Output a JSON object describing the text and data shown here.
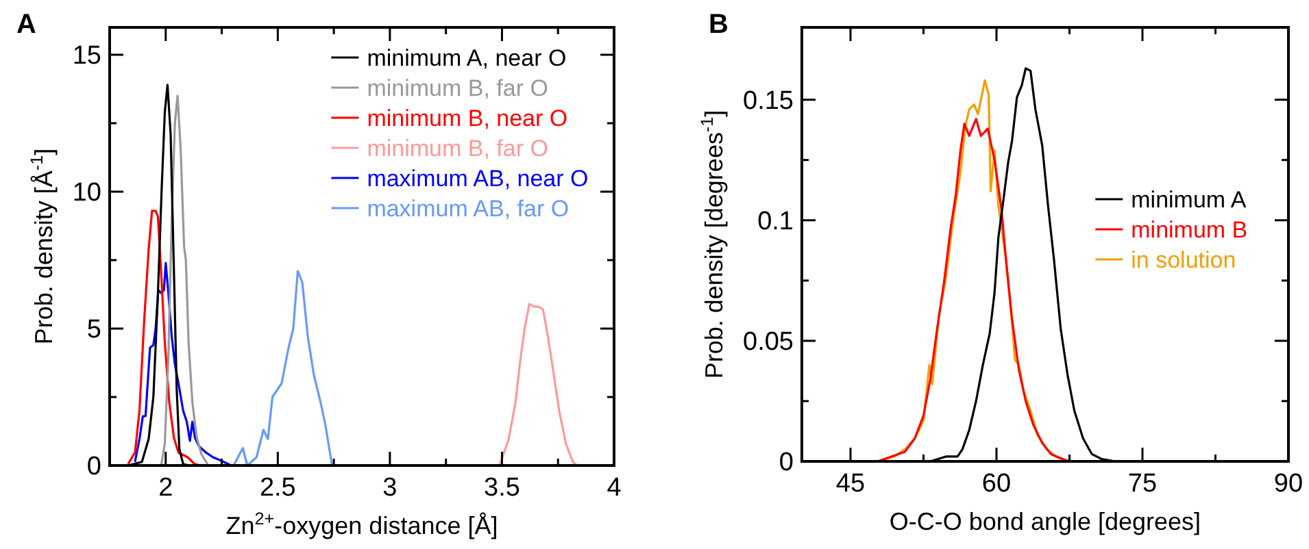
{
  "chart_data": [
    {
      "type": "line",
      "xlabel": "Zn$^{2+}$-oxygen distance [Å]",
      "ylabel": "Prob. density [Å$^{-1}$]",
      "annotations": [
        "A"
      ],
      "legend": "top right",
      "xlim": [
        1.75,
        4
      ],
      "ylim": [
        0,
        16
      ],
      "xticks": [
        {
          "value": 2,
          "label": "2"
        },
        {
          "value": 2.25,
          "label": null
        },
        {
          "value": 2.5,
          "label": "2.5"
        },
        {
          "value": 2.75,
          "label": null
        },
        {
          "value": 3,
          "label": "3"
        },
        {
          "value": 3.25,
          "label": null
        },
        {
          "value": 3.5,
          "label": "3.5"
        },
        {
          "value": 3.75,
          "label": null
        },
        {
          "value": 4,
          "label": "4"
        }
      ],
      "yticks": [
        0,
        {
          "value": 2.5,
          "label": null
        },
        5,
        {
          "value": 7.5,
          "label": null
        },
        10,
        {
          "value": 12.5,
          "label": null
        },
        15
      ],
      "series": [
        {
          "name": "minimum A, near O",
          "color": "#000000",
          "x": [
            1.832,
            1.894,
            1.924,
            1.945,
            1.965,
            1.982,
            1.996,
            2.008,
            2.022,
            2.037,
            2.049,
            2.061,
            2.078,
            2.108
          ],
          "values": [
            0,
            0.13,
            0.97,
            2.5,
            6.2,
            10.1,
            12.9,
            13.9,
            12.1,
            7.0,
            2.8,
            0.6,
            0.05,
            0
          ]
        },
        {
          "name": "minimum B, far O",
          "color": "#999999",
          "x": [
            1.98,
            1.996,
            2.012,
            2.027,
            2.041,
            2.053,
            2.067,
            2.082,
            2.09,
            2.102,
            2.119,
            2.139,
            2.16,
            2.19
          ],
          "values": [
            0,
            0.8,
            4,
            9,
            12.5,
            13.5,
            11.5,
            8,
            7.5,
            4.5,
            2.3,
            1.0,
            0.4,
            0
          ]
        },
        {
          "name": "minimum B, near O",
          "color": "#ff0000",
          "x": [
            1.832,
            1.863,
            1.883,
            1.904,
            1.924,
            1.939,
            1.955,
            1.965,
            1.98,
            1.996,
            2.016,
            2.037,
            2.057,
            2.098,
            2.129,
            2.16
          ],
          "values": [
            0.05,
            0.47,
            2.0,
            5.3,
            7.9,
            9.3,
            9.3,
            9.1,
            7.0,
            4.5,
            2.3,
            1.0,
            0.47,
            0.3,
            0.05,
            0
          ]
        },
        {
          "name": "minimum B, far O",
          "color": "#ff9999",
          "x": [
            3.489,
            3.53,
            3.56,
            3.581,
            3.601,
            3.622,
            3.642,
            3.663,
            3.683,
            3.703,
            3.724,
            3.755,
            3.785,
            3.816,
            3.836
          ],
          "values": [
            0,
            0.97,
            2.3,
            3.8,
            5.0,
            5.9,
            5.8,
            5.8,
            5.7,
            4.8,
            3.7,
            2.0,
            0.8,
            0.13,
            0
          ]
        },
        {
          "name": "maximum AB, near O",
          "color": "#0000ff",
          "x": [
            1.863,
            1.883,
            1.898,
            1.91,
            1.93,
            1.945,
            1.955,
            1.967,
            1.98,
            1.992,
            2.0,
            2.012,
            2.027,
            2.041,
            2.057,
            2.078,
            2.094,
            2.108,
            2.119,
            2.131,
            2.149,
            2.18,
            2.211,
            2.241,
            2.292
          ],
          "values": [
            0.13,
            0.97,
            1.8,
            1.8,
            4.3,
            4.4,
            5.0,
            6.4,
            6.3,
            6.4,
            7.4,
            6.3,
            4.7,
            3.7,
            3.0,
            2.0,
            1.6,
            0.9,
            1.6,
            1.0,
            0.7,
            0.47,
            0.3,
            0.2,
            0
          ]
        },
        {
          "name": "maximum AB, far O",
          "color": "#6699ff",
          "x": [
            2.303,
            2.344,
            2.364,
            2.405,
            2.436,
            2.456,
            2.476,
            2.517,
            2.548,
            2.569,
            2.589,
            2.609,
            2.634,
            2.661,
            2.691,
            2.712,
            2.742
          ],
          "values": [
            0,
            0.64,
            0,
            0.3,
            1.3,
            0.97,
            2.5,
            3.0,
            4.3,
            5.0,
            7.1,
            6.7,
            4.7,
            3.3,
            2.3,
            1.5,
            0
          ]
        }
      ]
    },
    {
      "type": "line",
      "xlabel": "O-C-O bond angle [degrees]",
      "ylabel": "Prob. density [degrees$^{-1}$]",
      "annotations": [
        "B"
      ],
      "legend": "right",
      "xlim": [
        40,
        90
      ],
      "ylim": [
        0,
        0.18
      ],
      "xticks": [
        45,
        {
          "value": 52.5,
          "label": null
        },
        60,
        {
          "value": 67.5,
          "label": null
        },
        75,
        {
          "value": 82.5,
          "label": null
        },
        90
      ],
      "yticks": [
        0,
        {
          "value": 0.025,
          "label": null
        },
        0.05,
        {
          "value": 0.075,
          "label": null
        },
        0.1,
        {
          "value": 0.125,
          "label": null
        },
        0.15
      ],
      "series": [
        {
          "name": "minimum A",
          "color": "#000000",
          "x": [
            53.2,
            54.8,
            56.0,
            56.5,
            57.2,
            57.9,
            58.6,
            59.3,
            59.8,
            60.2,
            60.7,
            61.2,
            61.6,
            62.1,
            62.6,
            63.0,
            63.5,
            64.0,
            64.7,
            65.3,
            65.9,
            66.6,
            67.3,
            68.0,
            68.9,
            69.8,
            70.8,
            72.2
          ],
          "values": [
            0,
            0.002,
            0.002,
            0.005,
            0.013,
            0.025,
            0.04,
            0.053,
            0.07,
            0.093,
            0.108,
            0.124,
            0.133,
            0.151,
            0.156,
            0.163,
            0.162,
            0.146,
            0.131,
            0.106,
            0.084,
            0.055,
            0.036,
            0.021,
            0.0095,
            0.003,
            0.001,
            0
          ]
        },
        {
          "name": "minimum B",
          "color": "#ff0000",
          "x": [
            47.8,
            49.2,
            50.6,
            51.6,
            52.5,
            53.2,
            53.9,
            54.6,
            55.3,
            55.8,
            56.3,
            56.7,
            57.2,
            57.9,
            58.4,
            59.1,
            59.8,
            60.5,
            60.9,
            61.6,
            62.3,
            63.0,
            63.8,
            64.7,
            65.6,
            66.8,
            67.5
          ],
          "values": [
            0,
            0.002,
            0.004,
            0.0095,
            0.019,
            0.034,
            0.055,
            0.074,
            0.097,
            0.11,
            0.129,
            0.14,
            0.135,
            0.142,
            0.135,
            0.138,
            0.125,
            0.105,
            0.087,
            0.059,
            0.038,
            0.025,
            0.015,
            0.0076,
            0.003,
            0.001,
            0
          ]
        },
        {
          "name": "in solution",
          "color": "#f0a000",
          "x": [
            47.8,
            49.5,
            50.6,
            51.6,
            52.5,
            53.1,
            53.4,
            54.1,
            54.8,
            55.5,
            56.3,
            56.8,
            57.2,
            57.7,
            58.1,
            58.5,
            58.8,
            59.2,
            59.4,
            59.8,
            60.2,
            60.9,
            61.6,
            61.9,
            62.3,
            62.8,
            63.5,
            64.2,
            65.2,
            66.1,
            67.0,
            67.7
          ],
          "values": [
            0,
            0.002,
            0.005,
            0.0095,
            0.017,
            0.04,
            0.032,
            0.061,
            0.076,
            0.099,
            0.12,
            0.139,
            0.146,
            0.148,
            0.144,
            0.152,
            0.158,
            0.152,
            0.112,
            0.129,
            0.106,
            0.086,
            0.057,
            0.042,
            0.04,
            0.029,
            0.021,
            0.011,
            0.005,
            0.002,
            0.0004,
            0
          ]
        }
      ]
    }
  ]
}
